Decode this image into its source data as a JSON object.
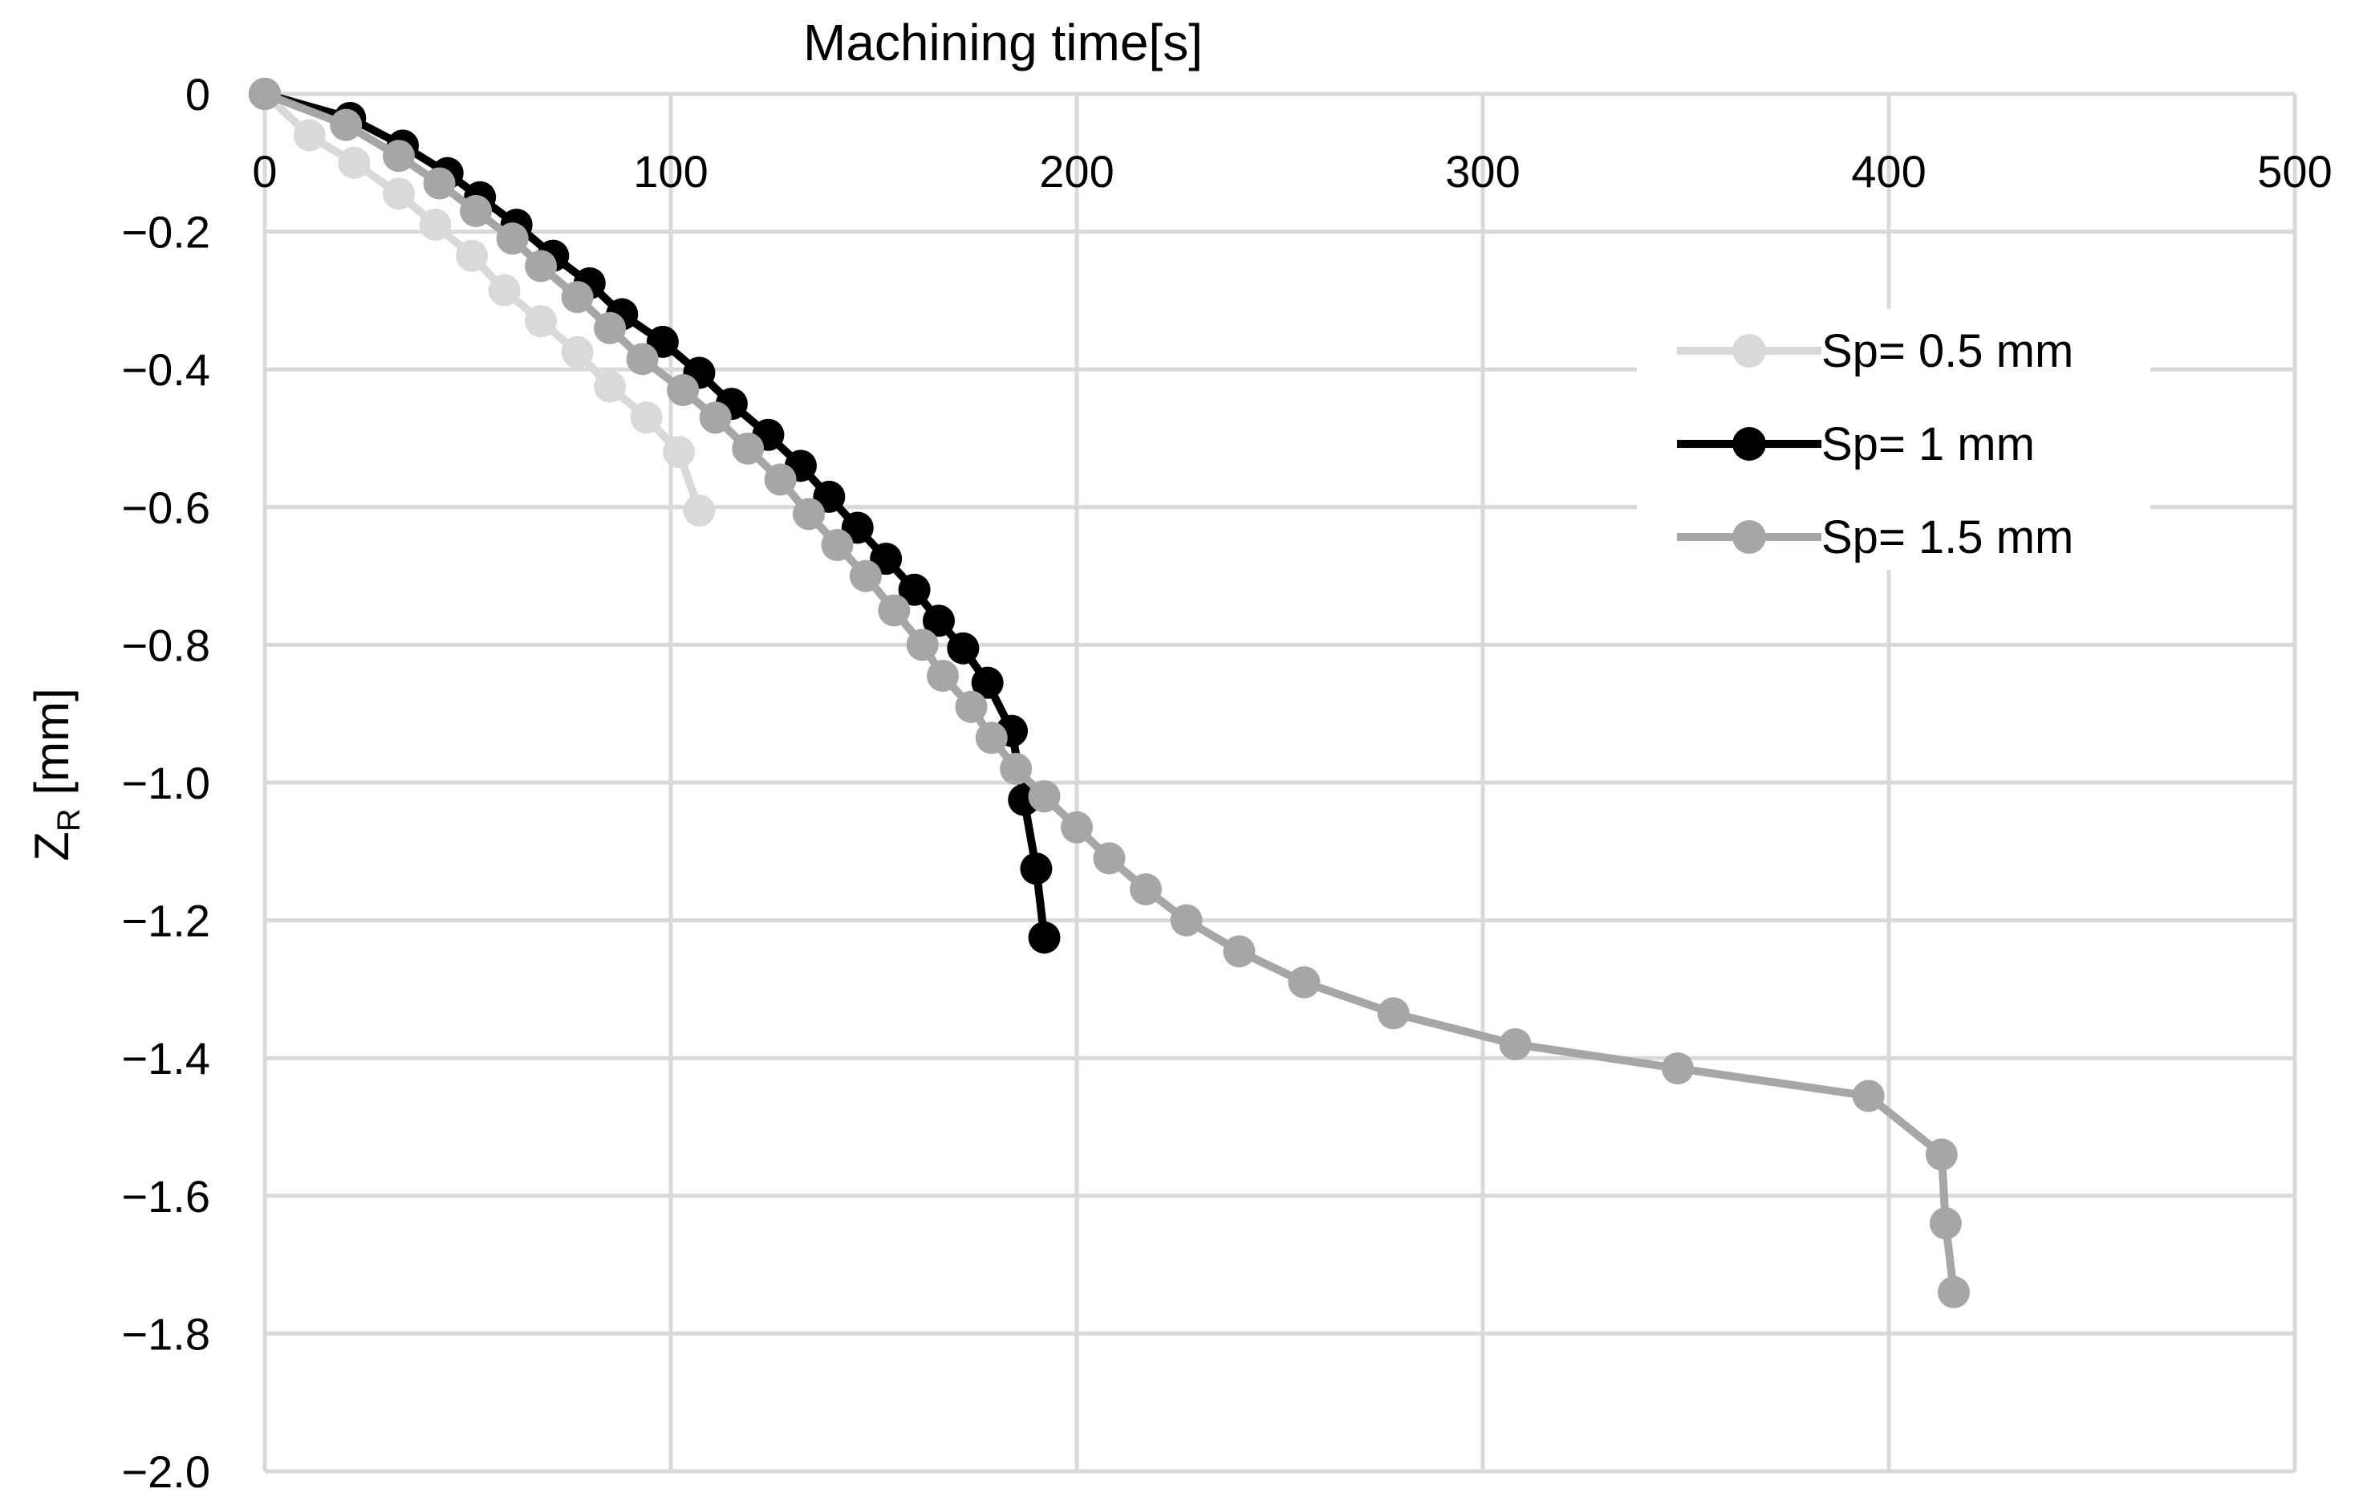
{
  "chart_data": {
    "type": "line",
    "title": "",
    "xlabel": "Machining time[s]",
    "ylabel_main": "Z",
    "ylabel_sub": "R",
    "ylabel_rest": " [mm]",
    "xlim": [
      0,
      500
    ],
    "ylim": [
      -2.0,
      0
    ],
    "x_ticks": [
      "0",
      "100",
      "200",
      "300",
      "400",
      "500"
    ],
    "y_ticks": [
      "0",
      "-0.2",
      "-0.4",
      "-0.6",
      "-0.8",
      "-1.0",
      "-1.2",
      "-1.4",
      "-1.6",
      "-1.8",
      "-2.0"
    ],
    "x_axis_position": "top",
    "grid": true,
    "legend_position": "right",
    "series": [
      {
        "name": "Sp= 0.5 mm",
        "color": "#d9d9d9",
        "points": [
          [
            0,
            0
          ],
          [
            11,
            -0.06
          ],
          [
            22,
            -0.1
          ],
          [
            33,
            -0.145
          ],
          [
            42,
            -0.19
          ],
          [
            51,
            -0.235
          ],
          [
            59,
            -0.285
          ],
          [
            68,
            -0.33
          ],
          [
            77,
            -0.375
          ],
          [
            85,
            -0.425
          ],
          [
            94,
            -0.47
          ],
          [
            102,
            -0.52
          ],
          [
            107,
            -0.605
          ]
        ]
      },
      {
        "name": "Sp= 1 mm",
        "color": "#000000",
        "points": [
          [
            0,
            0
          ],
          [
            21,
            -0.035
          ],
          [
            34,
            -0.075
          ],
          [
            45,
            -0.115
          ],
          [
            53,
            -0.15
          ],
          [
            62,
            -0.19
          ],
          [
            71,
            -0.235
          ],
          [
            80,
            -0.275
          ],
          [
            88,
            -0.32
          ],
          [
            98,
            -0.36
          ],
          [
            107,
            -0.405
          ],
          [
            115,
            -0.45
          ],
          [
            124,
            -0.495
          ],
          [
            132,
            -0.54
          ],
          [
            139,
            -0.585
          ],
          [
            146,
            -0.63
          ],
          [
            153,
            -0.675
          ],
          [
            160,
            -0.72
          ],
          [
            166,
            -0.765
          ],
          [
            172,
            -0.805
          ],
          [
            178,
            -0.855
          ],
          [
            184,
            -0.925
          ],
          [
            187,
            -1.025
          ],
          [
            190,
            -1.125
          ],
          [
            192,
            -1.225
          ]
        ]
      },
      {
        "name": "Sp= 1.5 mm",
        "color": "#a6a6a6",
        "points": [
          [
            0,
            0
          ],
          [
            20,
            -0.045
          ],
          [
            33,
            -0.09
          ],
          [
            43,
            -0.13
          ],
          [
            52,
            -0.17
          ],
          [
            61,
            -0.21
          ],
          [
            68,
            -0.25
          ],
          [
            77,
            -0.295
          ],
          [
            85,
            -0.34
          ],
          [
            93,
            -0.385
          ],
          [
            103,
            -0.43
          ],
          [
            111,
            -0.47
          ],
          [
            119,
            -0.515
          ],
          [
            127,
            -0.56
          ],
          [
            134,
            -0.61
          ],
          [
            141,
            -0.655
          ],
          [
            148,
            -0.7
          ],
          [
            155,
            -0.75
          ],
          [
            162,
            -0.8
          ],
          [
            167,
            -0.845
          ],
          [
            174,
            -0.89
          ],
          [
            179,
            -0.935
          ],
          [
            185,
            -0.98
          ],
          [
            192,
            -1.02
          ],
          [
            200,
            -1.065
          ],
          [
            208,
            -1.11
          ],
          [
            217,
            -1.155
          ],
          [
            227,
            -1.2
          ],
          [
            240,
            -1.245
          ],
          [
            256,
            -1.29
          ],
          [
            278,
            -1.335
          ],
          [
            308,
            -1.38
          ],
          [
            348,
            -1.415
          ],
          [
            395,
            -1.455
          ],
          [
            413,
            -1.54
          ],
          [
            414,
            -1.64
          ],
          [
            416,
            -1.74
          ]
        ]
      }
    ]
  }
}
